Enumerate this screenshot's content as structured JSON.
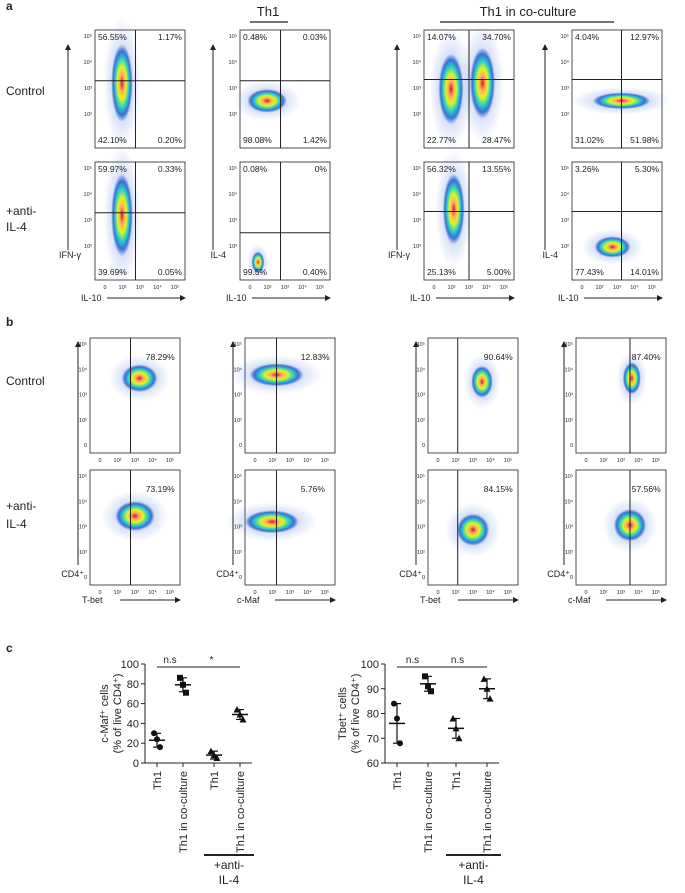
{
  "panel_a": {
    "label": "a",
    "headers": [
      "Th1",
      "Th1 in co-culture"
    ],
    "row_labels": [
      [
        "Control"
      ],
      [
        "+anti-",
        "IL-4"
      ]
    ],
    "plots": [
      [
        {
          "quadrants": [
            "56.55%",
            "1.17%",
            "42.10%",
            "0.20%"
          ]
        },
        {
          "quadrants": [
            "0.48%",
            "0.03%",
            "98.08%",
            "1.42%"
          ]
        },
        {
          "quadrants": [
            "14.07%",
            "34.70%",
            "22.77%",
            "28.47%"
          ]
        },
        {
          "quadrants": [
            "4.04%",
            "12.97%",
            "31.02%",
            "51.98%"
          ]
        }
      ],
      [
        {
          "quadrants": [
            "59.97%",
            "0.33%",
            "39.69%",
            "0.05%"
          ],
          "y_label": "IFN-γ",
          "x_label": "IL-10"
        },
        {
          "quadrants": [
            "0.08%",
            "0%",
            "99.5%",
            "0.40%"
          ],
          "y_label": "IL-4",
          "x_label": "IL-10"
        },
        {
          "quadrants": [
            "56.32%",
            "13.55%",
            "25.13%",
            "5.00%"
          ],
          "y_label": "IFN-γ",
          "x_label": "IL-10"
        },
        {
          "quadrants": [
            "3.26%",
            "5.30%",
            "77.43%",
            "14.01%"
          ],
          "y_label": "IL-4",
          "x_label": "IL-10"
        }
      ]
    ]
  },
  "panel_b": {
    "label": "b",
    "row_labels": [
      [
        "Control"
      ],
      [
        "+anti-",
        "IL-4"
      ]
    ],
    "plots": [
      [
        {
          "percent": "78.29%"
        },
        {
          "percent": "12.83%"
        },
        {
          "percent": "90.64%"
        },
        {
          "percent": "87.40%"
        }
      ],
      [
        {
          "percent": "73.19%",
          "y_label": "CD4⁺",
          "x_label": "T-bet"
        },
        {
          "percent": "5.76%",
          "y_label": "CD4⁺",
          "x_label": "c-Maf"
        },
        {
          "percent": "84.15%",
          "y_label": "CD4⁺",
          "x_label": "T-bet"
        },
        {
          "percent": "57.56%",
          "y_label": "CD4⁺",
          "x_label": "c-Maf"
        }
      ]
    ]
  },
  "axis_ticks": {
    "y": [
      "10⁵",
      "10⁴",
      "10³",
      "10²",
      "0"
    ],
    "x": [
      "0",
      "10²",
      "10³",
      "10⁴",
      "10⁵"
    ]
  },
  "panel_c": {
    "label": "c"
  },
  "chart_data": [
    {
      "type": "dot",
      "y_label": [
        "c-Maf⁺ cells",
        "(% of live CD4⁺)"
      ],
      "categories": [
        "Th1",
        "Th1 in co-culture",
        "Th1",
        "Th1 in co-culture"
      ],
      "values": [
        [
          30,
          24,
          16
        ],
        [
          86,
          79,
          71
        ],
        [
          12,
          8,
          5
        ],
        [
          54,
          49,
          44
        ]
      ],
      "mean": [
        23,
        79,
        8,
        49
      ],
      "error": [
        7,
        7,
        4,
        5
      ],
      "ylim": [
        0,
        100
      ],
      "yticks": [
        0,
        20,
        40,
        60,
        80,
        100
      ],
      "annotations": [
        "n.s",
        "*"
      ],
      "group_label": [
        "+anti-",
        "IL-4"
      ]
    },
    {
      "type": "dot",
      "y_label": [
        "Tbet⁺ cells",
        "(% of live CD4⁺)"
      ],
      "categories": [
        "Th1",
        "Th1 in co-culture",
        "Th1",
        "Th1 in co-culture"
      ],
      "values": [
        [
          84,
          78,
          68
        ],
        [
          95,
          91,
          89
        ],
        [
          78,
          74,
          70
        ],
        [
          94,
          90,
          86
        ]
      ],
      "mean": [
        76,
        92,
        74,
        90
      ],
      "error": [
        8,
        3,
        4,
        4
      ],
      "ylim": [
        60,
        100
      ],
      "yticks": [
        60,
        70,
        80,
        90,
        100
      ],
      "annotations": [
        "n.s",
        "n.s"
      ],
      "group_label": [
        "+anti-",
        "IL-4"
      ]
    }
  ]
}
